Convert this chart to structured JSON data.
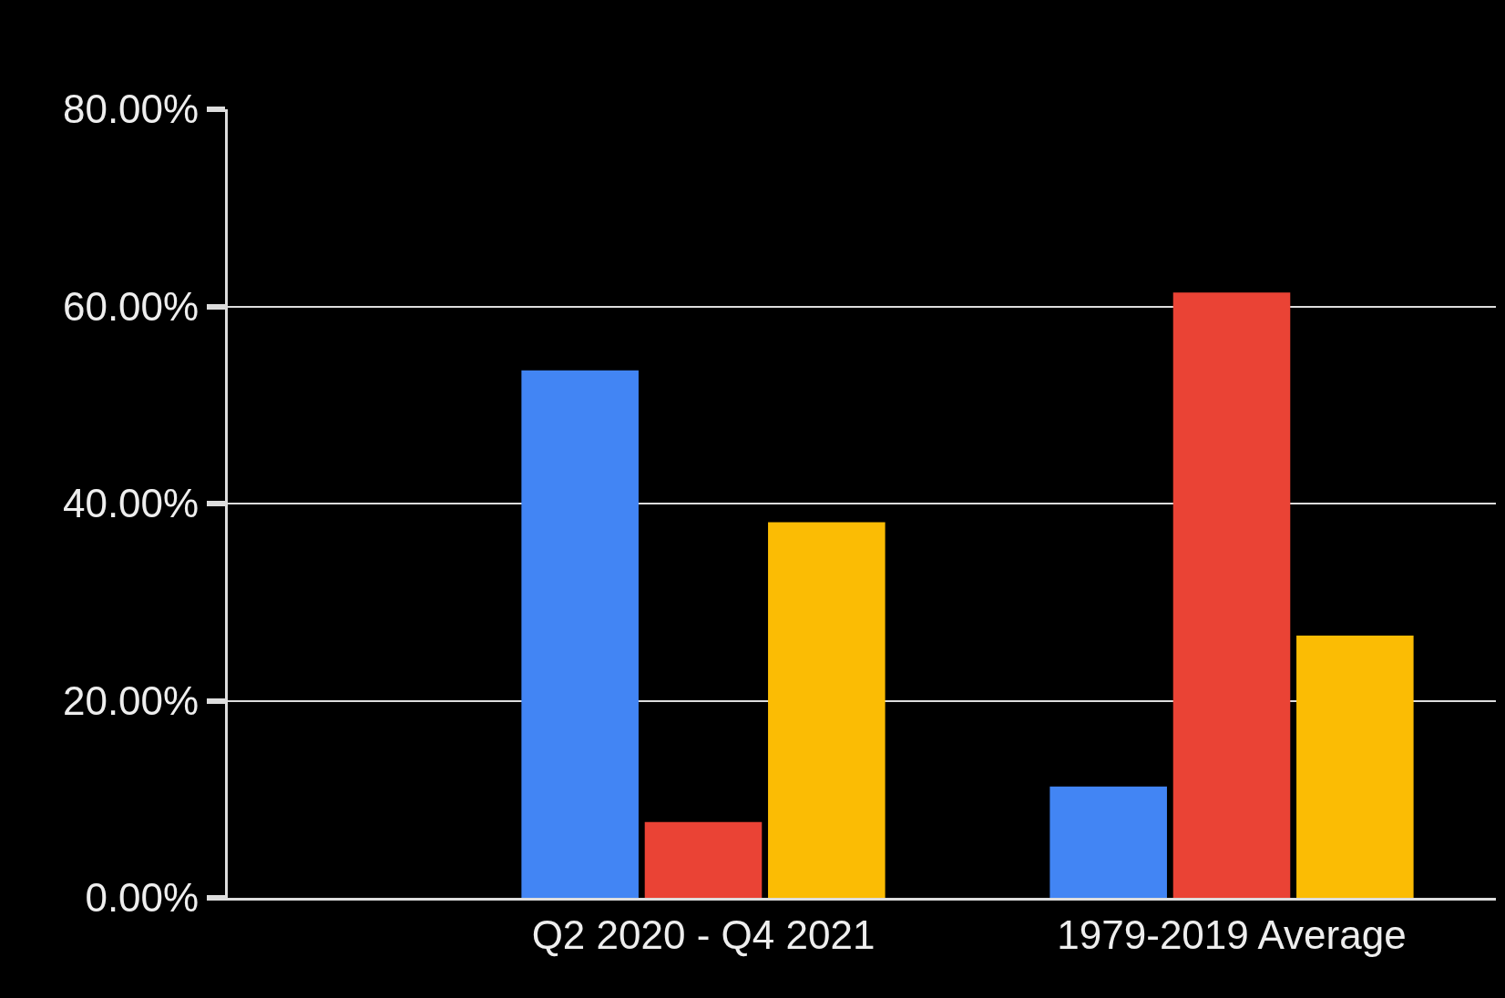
{
  "chart_data": {
    "type": "bar",
    "categories": [
      "Q2 2020 - Q4 2021",
      "1979-2019 Average"
    ],
    "series": [
      {
        "color": "#4285f4",
        "values": [
          53.5,
          11.3
        ]
      },
      {
        "color": "#ea4335",
        "values": [
          7.7,
          61.4
        ]
      },
      {
        "color": "#fbbc04",
        "values": [
          38.1,
          26.6
        ]
      }
    ],
    "ylim": [
      0,
      80
    ],
    "yticks": [
      {
        "value": 0,
        "label": "0.00%"
      },
      {
        "value": 20,
        "label": "20.00%"
      },
      {
        "value": 40,
        "label": "40.00%"
      },
      {
        "value": 60,
        "label": "60.00%"
      },
      {
        "value": 80,
        "label": "80.00%"
      }
    ],
    "grid": "y"
  }
}
